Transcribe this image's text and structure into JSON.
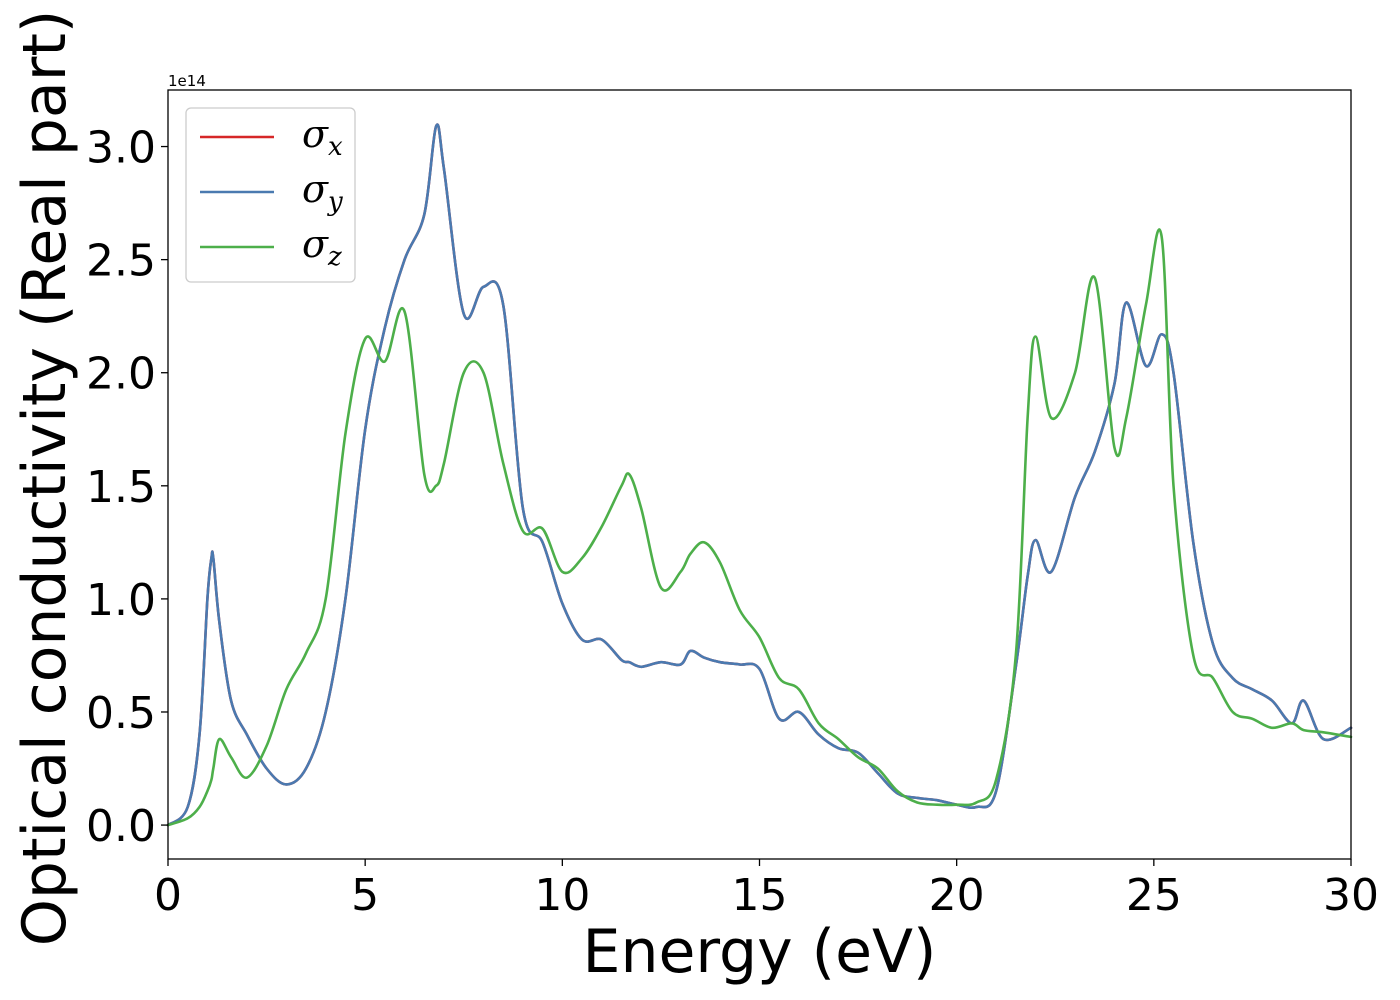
{
  "chart_data": {
    "type": "line",
    "title": "",
    "xlabel": "Energy (eV)",
    "ylabel": "Optical conductivity (Real part)",
    "y_offset_label": "1e14",
    "xlim": [
      0,
      30
    ],
    "ylim": [
      -0.15,
      3.25
    ],
    "xticks": [
      "0",
      "5",
      "10",
      "15",
      "20",
      "25",
      "30"
    ],
    "yticks": [
      "0.0",
      "0.5",
      "1.0",
      "1.5",
      "2.0",
      "2.5",
      "3.0"
    ],
    "grid": false,
    "legend_position": "top-left",
    "legend": [
      {
        "symbol": "σ",
        "sub": "x",
        "color": "#d62728"
      },
      {
        "symbol": "σ",
        "sub": "y",
        "color": "#4a7ab0"
      },
      {
        "symbol": "σ",
        "sub": "z",
        "color": "#4daf4a"
      }
    ],
    "x": [
      0,
      0.5,
      0.8,
      1.0,
      1.1,
      1.15,
      1.3,
      1.6,
      2.0,
      2.5,
      3.0,
      3.5,
      4.0,
      4.5,
      5.0,
      5.5,
      6.0,
      6.5,
      6.8,
      7.0,
      7.5,
      8.0,
      8.5,
      9.0,
      9.5,
      10.0,
      10.5,
      11.0,
      11.5,
      11.7,
      12.0,
      12.5,
      13.0,
      13.25,
      13.6,
      14.0,
      14.5,
      15.0,
      15.5,
      16.0,
      16.5,
      17.0,
      17.5,
      18.0,
      18.5,
      19.0,
      19.5,
      20.0,
      20.5,
      21.0,
      21.5,
      21.8,
      22.0,
      22.4,
      23.0,
      23.5,
      24.0,
      24.3,
      24.8,
      25.2,
      25.5,
      26.0,
      26.5,
      27.0,
      27.5,
      28.0,
      28.5,
      28.8,
      29.3,
      30.0
    ],
    "series": [
      {
        "name": "σx",
        "color": "#d62728",
        "values": [
          0.0,
          0.08,
          0.4,
          1.0,
          1.18,
          1.18,
          0.9,
          0.55,
          0.4,
          0.25,
          0.18,
          0.25,
          0.5,
          1.0,
          1.75,
          2.2,
          2.5,
          2.7,
          3.09,
          2.9,
          2.26,
          2.38,
          2.3,
          1.4,
          1.25,
          0.98,
          0.82,
          0.82,
          0.73,
          0.72,
          0.7,
          0.72,
          0.71,
          0.77,
          0.74,
          0.72,
          0.71,
          0.69,
          0.47,
          0.5,
          0.4,
          0.34,
          0.32,
          0.23,
          0.14,
          0.12,
          0.11,
          0.09,
          0.08,
          0.15,
          0.7,
          1.1,
          1.26,
          1.12,
          1.45,
          1.65,
          1.95,
          2.31,
          2.03,
          2.17,
          2.0,
          1.25,
          0.8,
          0.65,
          0.6,
          0.55,
          0.45,
          0.55,
          0.38,
          0.43
        ]
      },
      {
        "name": "σy",
        "color": "#4a7ab0",
        "values": [
          0.0,
          0.08,
          0.4,
          1.0,
          1.18,
          1.18,
          0.9,
          0.55,
          0.4,
          0.25,
          0.18,
          0.25,
          0.5,
          1.0,
          1.75,
          2.2,
          2.5,
          2.7,
          3.09,
          2.9,
          2.26,
          2.38,
          2.3,
          1.4,
          1.25,
          0.98,
          0.82,
          0.82,
          0.73,
          0.72,
          0.7,
          0.72,
          0.71,
          0.77,
          0.74,
          0.72,
          0.71,
          0.69,
          0.47,
          0.5,
          0.4,
          0.34,
          0.32,
          0.23,
          0.14,
          0.12,
          0.11,
          0.09,
          0.08,
          0.15,
          0.7,
          1.1,
          1.26,
          1.12,
          1.45,
          1.65,
          1.95,
          2.31,
          2.03,
          2.17,
          2.0,
          1.25,
          0.8,
          0.65,
          0.6,
          0.55,
          0.45,
          0.55,
          0.38,
          0.43
        ]
      },
      {
        "name": "σz",
        "color": "#4daf4a",
        "values": [
          0.0,
          0.03,
          0.08,
          0.15,
          0.2,
          0.25,
          0.38,
          0.3,
          0.21,
          0.35,
          0.6,
          0.76,
          1.0,
          1.73,
          2.15,
          2.05,
          2.27,
          1.55,
          1.5,
          1.6,
          2.0,
          2.0,
          1.6,
          1.3,
          1.31,
          1.12,
          1.18,
          1.32,
          1.5,
          1.55,
          1.4,
          1.05,
          1.12,
          1.2,
          1.25,
          1.16,
          0.95,
          0.83,
          0.65,
          0.6,
          0.45,
          0.38,
          0.3,
          0.25,
          0.15,
          0.1,
          0.09,
          0.09,
          0.1,
          0.2,
          0.75,
          1.8,
          2.16,
          1.8,
          2.0,
          2.42,
          1.67,
          1.8,
          2.3,
          2.6,
          1.5,
          0.75,
          0.65,
          0.5,
          0.47,
          0.43,
          0.45,
          0.42,
          0.41,
          0.39
        ]
      }
    ]
  }
}
